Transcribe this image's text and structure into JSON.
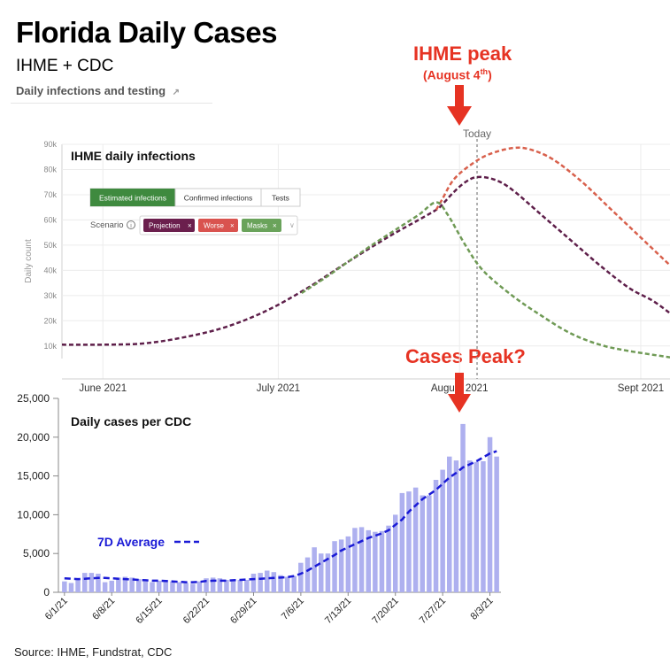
{
  "header": {
    "title": "Florida Daily Cases",
    "subtitle": "IHME + CDC",
    "subhead": "Daily infections and testing",
    "external_link_icon": "external-link-icon"
  },
  "annotations": {
    "ihme_peak_title": "IHME peak",
    "ihme_peak_date_main": "(August 4",
    "ihme_peak_date_sup": "th",
    "ihme_peak_date_end": ")",
    "cases_peak": "Cases Peak?",
    "today_label": "Today"
  },
  "controls": {
    "tabs": [
      "Estimated infections",
      "Confirmed infections",
      "Tests"
    ],
    "scenario_label": "Scenario",
    "scenario_chips": [
      {
        "label": "Projection",
        "color": "#6b1f4d"
      },
      {
        "label": "Worse",
        "color": "#d9534f"
      },
      {
        "label": "Masks",
        "color": "#6aa35b"
      }
    ],
    "active_tab_color": "#3f8a3f"
  },
  "source": "Source: IHME, Fundstrat, CDC",
  "colors": {
    "red_accent": "#e63323",
    "projection": "#5e1f4a",
    "worse": "#d8604c",
    "masks": "#6f9a55",
    "bars": "#aeb0ef",
    "avg_line": "#1a1ad6"
  },
  "chart_data": [
    {
      "type": "line",
      "title": "IHME daily infections",
      "ylabel": "Daily count",
      "ylim": [
        5000,
        90000
      ],
      "yticks": [
        10000,
        20000,
        30000,
        40000,
        50000,
        60000,
        70000,
        80000,
        90000
      ],
      "ytick_labels": [
        "10k",
        "20k",
        "30k",
        "40k",
        "50k",
        "60k",
        "70k",
        "80k",
        "90k"
      ],
      "x_domain_days": [
        -7,
        97
      ],
      "xticks": [
        {
          "day": 0,
          "label": "June 2021"
        },
        {
          "day": 30,
          "label": "July 2021"
        },
        {
          "day": 61,
          "label": "August 2021"
        },
        {
          "day": 92,
          "label": "Sept 2021"
        }
      ],
      "today_day": 64,
      "series": [
        {
          "name": "Projection",
          "color_key": "projection",
          "points": [
            [
              -7,
              10500
            ],
            [
              0,
              10500
            ],
            [
              7,
              11000
            ],
            [
              14,
              13500
            ],
            [
              21,
              17500
            ],
            [
              28,
              24000
            ],
            [
              35,
              33000
            ],
            [
              42,
              43500
            ],
            [
              49,
              53500
            ],
            [
              54,
              60000
            ],
            [
              57,
              64000
            ],
            [
              58,
              66000
            ],
            [
              60,
              71000
            ],
            [
              62,
              75000
            ],
            [
              64,
              77000
            ],
            [
              67,
              76000
            ],
            [
              70,
              72000
            ],
            [
              75,
              62000
            ],
            [
              80,
              52000
            ],
            [
              85,
              42000
            ],
            [
              90,
              33000
            ],
            [
              94,
              28000
            ],
            [
              97,
              23000
            ]
          ]
        },
        {
          "name": "Worse",
          "color_key": "worse",
          "points": [
            [
              57,
              64000
            ],
            [
              58,
              68000
            ],
            [
              60,
              76000
            ],
            [
              63,
              82000
            ],
            [
              66,
              86000
            ],
            [
              70,
              88500
            ],
            [
              73,
              88000
            ],
            [
              77,
              84000
            ],
            [
              82,
              75000
            ],
            [
              87,
              64000
            ],
            [
              92,
              53000
            ],
            [
              97,
              42000
            ]
          ]
        },
        {
          "name": "Masks",
          "color_key": "masks",
          "points": [
            [
              34,
              31000
            ],
            [
              38,
              37000
            ],
            [
              42,
              43500
            ],
            [
              46,
              50000
            ],
            [
              50,
              56000
            ],
            [
              54,
              62000
            ],
            [
              57,
              67000
            ],
            [
              59,
              62000
            ],
            [
              62,
              50000
            ],
            [
              65,
              40000
            ],
            [
              70,
              30000
            ],
            [
              75,
              22000
            ],
            [
              80,
              15000
            ],
            [
              85,
              10500
            ],
            [
              90,
              8000
            ],
            [
              97,
              5500
            ]
          ]
        }
      ]
    },
    {
      "type": "bar",
      "title": "Daily cases per CDC",
      "ylim": [
        0,
        25000
      ],
      "yticks": [
        0,
        5000,
        10000,
        15000,
        20000,
        25000
      ],
      "ytick_labels": [
        "0",
        "5,000",
        "10,000",
        "15,000",
        "20,000",
        "25,000"
      ],
      "categories": [
        "6/1/21",
        "6/2/21",
        "6/3/21",
        "6/4/21",
        "6/5/21",
        "6/6/21",
        "6/7/21",
        "6/8/21",
        "6/9/21",
        "6/10/21",
        "6/11/21",
        "6/12/21",
        "6/13/21",
        "6/14/21",
        "6/15/21",
        "6/16/21",
        "6/17/21",
        "6/18/21",
        "6/19/21",
        "6/20/21",
        "6/21/21",
        "6/22/21",
        "6/23/21",
        "6/24/21",
        "6/25/21",
        "6/26/21",
        "6/27/21",
        "6/28/21",
        "6/29/21",
        "6/30/21",
        "7/1/21",
        "7/2/21",
        "7/3/21",
        "7/4/21",
        "7/5/21",
        "7/6/21",
        "7/7/21",
        "7/8/21",
        "7/9/21",
        "7/10/21",
        "7/11/21",
        "7/12/21",
        "7/13/21",
        "7/14/21",
        "7/15/21",
        "7/16/21",
        "7/17/21",
        "7/18/21",
        "7/19/21",
        "7/20/21",
        "7/21/21",
        "7/22/21",
        "7/23/21",
        "7/24/21",
        "7/25/21",
        "7/26/21",
        "7/27/21",
        "7/28/21",
        "7/29/21",
        "7/30/21",
        "7/31/21",
        "8/1/21",
        "8/2/21",
        "8/3/21",
        "8/4/21"
      ],
      "tick_labels": [
        "6/1/21",
        "6/8/21",
        "6/15/21",
        "6/22/21",
        "6/29/21",
        "7/6/21",
        "7/13/21",
        "7/20/21",
        "7/27/21",
        "8/3/21"
      ],
      "tick_indices": [
        0,
        7,
        14,
        21,
        28,
        35,
        42,
        49,
        56,
        63
      ],
      "series": [
        {
          "name": "Daily cases",
          "values": [
            1400,
            1200,
            1800,
            2500,
            2500,
            2400,
            1300,
            1500,
            1900,
            2000,
            1900,
            1700,
            1400,
            1300,
            1500,
            1600,
            1400,
            1300,
            1200,
            1100,
            1400,
            1800,
            1900,
            1800,
            1600,
            1500,
            1600,
            1600,
            2400,
            2500,
            2800,
            2600,
            2200,
            2000,
            2100,
            3800,
            4500,
            5800,
            5000,
            5000,
            6600,
            6800,
            7200,
            8300,
            8400,
            8000,
            7800,
            7900,
            8600,
            10000,
            12800,
            13000,
            13500,
            12500,
            12500,
            14500,
            15800,
            17500,
            17000,
            21700,
            17000,
            16800,
            16900,
            20000,
            17500
          ]
        },
        {
          "name": "7D Average",
          "values": [
            1800,
            1750,
            1700,
            1750,
            1800,
            1850,
            1850,
            1800,
            1750,
            1700,
            1650,
            1600,
            1550,
            1500,
            1500,
            1450,
            1400,
            1350,
            1300,
            1300,
            1350,
            1450,
            1500,
            1500,
            1500,
            1550,
            1600,
            1650,
            1700,
            1750,
            1800,
            1850,
            1900,
            1950,
            2100,
            2400,
            2800,
            3300,
            3800,
            4300,
            4800,
            5400,
            5800,
            6200,
            6600,
            7000,
            7300,
            7600,
            8000,
            8700,
            9400,
            10400,
            11200,
            12000,
            12600,
            13200,
            14000,
            14800,
            15400,
            16100,
            16500,
            16900,
            17400,
            17900,
            18200
          ]
        }
      ],
      "legend": "7D Average"
    }
  ]
}
